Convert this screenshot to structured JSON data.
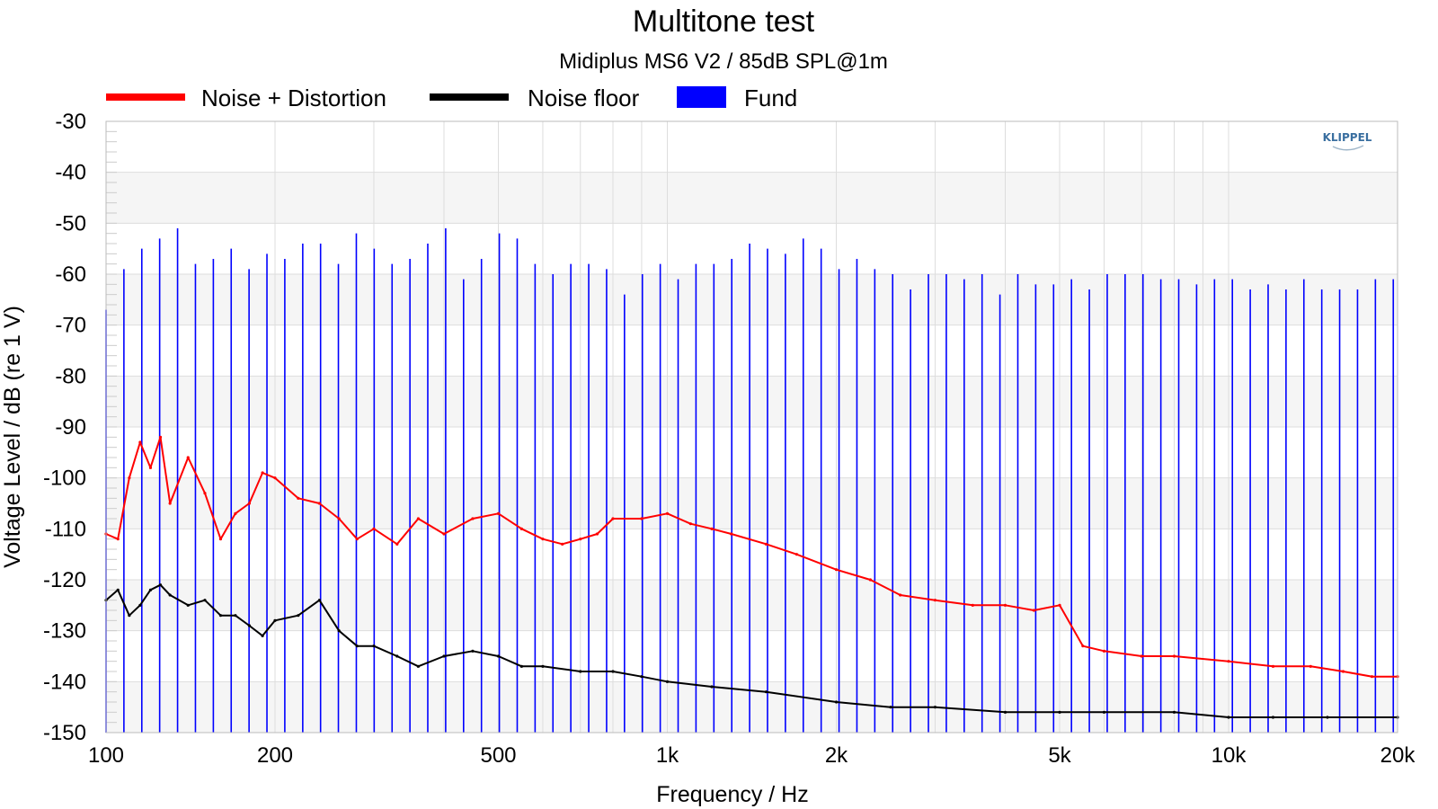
{
  "chart_data": {
    "type": "line",
    "title": "Multitone test",
    "subtitle": "Midiplus MS6 V2 / 85dB SPL@1m",
    "xlabel": "Frequency / Hz",
    "ylabel": "Voltage Level / dB (re 1 V)",
    "xscale": "log",
    "xlim": [
      100,
      20000
    ],
    "ylim": [
      -150,
      -30
    ],
    "grid": true,
    "legend_position": "top",
    "logo_text": "KLIPPEL",
    "x_ticks": [
      {
        "value": 100,
        "label": "100"
      },
      {
        "value": 200,
        "label": "200"
      },
      {
        "value": 500,
        "label": "500"
      },
      {
        "value": 1000,
        "label": "1k"
      },
      {
        "value": 2000,
        "label": "2k"
      },
      {
        "value": 5000,
        "label": "5k"
      },
      {
        "value": 10000,
        "label": "10k"
      },
      {
        "value": 20000,
        "label": "20k"
      }
    ],
    "y_ticks": [
      -30,
      -40,
      -50,
      -60,
      -70,
      -80,
      -90,
      -100,
      -110,
      -120,
      -130,
      -140,
      -150
    ],
    "series": [
      {
        "name": "Noise + Distortion",
        "color": "#ff0000",
        "style": "line",
        "x": [
          100,
          105,
          110,
          115,
          120,
          125,
          130,
          140,
          150,
          160,
          170,
          180,
          190,
          200,
          220,
          240,
          260,
          280,
          300,
          330,
          360,
          400,
          450,
          500,
          550,
          600,
          650,
          700,
          750,
          800,
          900,
          1000,
          1100,
          1200,
          1300,
          1500,
          1700,
          2000,
          2300,
          2600,
          3000,
          3500,
          4000,
          4500,
          5000,
          5500,
          6000,
          7000,
          8000,
          10000,
          12000,
          14000,
          16000,
          18000,
          20000
        ],
        "y": [
          -111,
          -112,
          -100,
          -93,
          -98,
          -92,
          -105,
          -96,
          -103,
          -112,
          -107,
          -105,
          -99,
          -100,
          -104,
          -105,
          -108,
          -112,
          -110,
          -113,
          -108,
          -111,
          -108,
          -107,
          -110,
          -112,
          -113,
          -112,
          -111,
          -108,
          -108,
          -107,
          -109,
          -110,
          -111,
          -113,
          -115,
          -118,
          -120,
          -123,
          -124,
          -125,
          -125,
          -126,
          -125,
          -133,
          -134,
          -135,
          -135,
          -136,
          -137,
          -137,
          -138,
          -139,
          -139
        ]
      },
      {
        "name": "Noise floor",
        "color": "#000000",
        "style": "line",
        "x": [
          100,
          105,
          110,
          115,
          120,
          125,
          130,
          140,
          150,
          160,
          170,
          180,
          190,
          200,
          220,
          240,
          260,
          280,
          300,
          330,
          360,
          400,
          450,
          500,
          550,
          600,
          700,
          800,
          900,
          1000,
          1200,
          1500,
          2000,
          2500,
          3000,
          4000,
          5000,
          6000,
          8000,
          10000,
          12000,
          15000,
          20000
        ],
        "y": [
          -124,
          -122,
          -127,
          -125,
          -122,
          -121,
          -123,
          -125,
          -124,
          -127,
          -127,
          -129,
          -131,
          -128,
          -127,
          -124,
          -130,
          -133,
          -133,
          -135,
          -137,
          -135,
          -134,
          -135,
          -137,
          -137,
          -138,
          -138,
          -139,
          -140,
          -141,
          -142,
          -144,
          -145,
          -145,
          -146,
          -146,
          -146,
          -146,
          -147,
          -147,
          -147,
          -147
        ]
      },
      {
        "name": "Fund",
        "color": "#0000ff",
        "style": "stem",
        "x": [
          100,
          107.6,
          115.8,
          124.6,
          134.1,
          144.3,
          155.3,
          167.1,
          179.8,
          193.5,
          208.2,
          224.1,
          241.1,
          259.4,
          279.2,
          300.4,
          323.3,
          347.9,
          374.3,
          402.8,
          433.5,
          466.5,
          502.0,
          540.2,
          581.3,
          625.5,
          673.1,
          724.4,
          779.5,
          838.8,
          902.7,
          971.4,
          1045.3,
          1124.8,
          1210.5,
          1302.6,
          1401.7,
          1508.4,
          1623.2,
          1746.7,
          1879.7,
          2022.7,
          2176.6,
          2342.3,
          2520.5,
          2712.4,
          2918.8,
          3140.9,
          3380.0,
          3637.2,
          3914.0,
          4211.9,
          4532.4,
          4877.4,
          5248.6,
          5648.0,
          6077.8,
          6540.4,
          7038.1,
          7573.7,
          8150.1,
          8770.3,
          9437.8,
          10156.0,
          10929.0,
          11760.7,
          12655.8,
          13618.9,
          14655.4,
          15770.7,
          16970.9,
          18262.5,
          19652.3
        ],
        "y": [
          -67,
          -59,
          -55,
          -53,
          -51,
          -58,
          -57,
          -55,
          -59,
          -56,
          -57,
          -54,
          -54,
          -58,
          -52,
          -55,
          -58,
          -57,
          -54,
          -51,
          -61,
          -57,
          -52,
          -53,
          -58,
          -60,
          -58,
          -58,
          -59,
          -64,
          -60,
          -58,
          -61,
          -58,
          -58,
          -57,
          -54,
          -55,
          -56,
          -53,
          -55,
          -59,
          -57,
          -59,
          -60,
          -63,
          -60,
          -60,
          -61,
          -60,
          -64,
          -60,
          -62,
          -62,
          -61,
          -63,
          -60,
          -60,
          -60,
          -61,
          -61,
          -62,
          -61,
          -61,
          -63,
          -62,
          -63,
          -61,
          -63,
          -63,
          -63,
          -61,
          -61
        ]
      }
    ]
  }
}
